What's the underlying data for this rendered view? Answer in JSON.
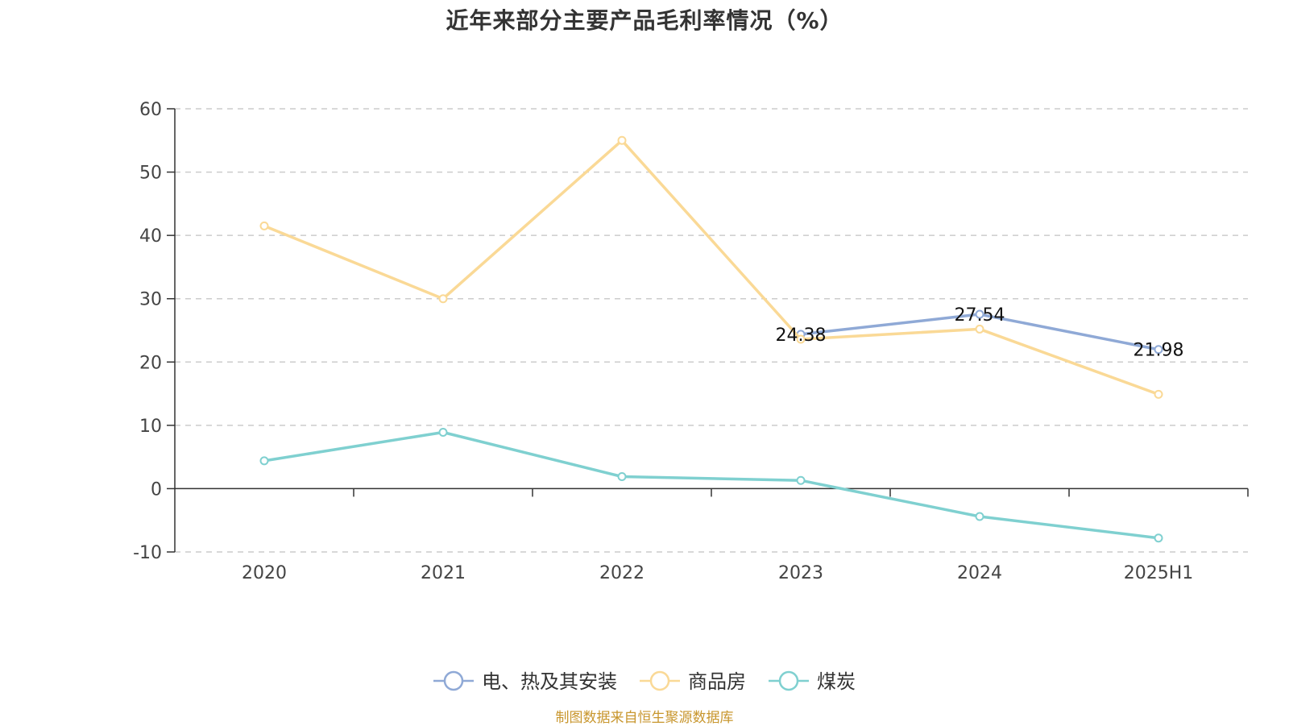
{
  "chart_data": {
    "type": "line",
    "title": "近年来部分主要产品毛利率情况（%）",
    "categories": [
      "2020",
      "2021",
      "2022",
      "2023",
      "2024",
      "2025H1"
    ],
    "ylim": [
      -10,
      60
    ],
    "yticks": [
      -10,
      0,
      10,
      20,
      30,
      40,
      50,
      60
    ],
    "grid": true,
    "legend_position": "bottom",
    "series": [
      {
        "name": "电、热及其安装",
        "color": "#8fa9d6",
        "values": [
          null,
          null,
          null,
          24.38,
          27.54,
          21.98
        ],
        "labels": [
          null,
          null,
          null,
          "24.38",
          "27.54",
          "21.98"
        ]
      },
      {
        "name": "商品房",
        "color": "#fad996",
        "values": [
          41.5,
          30.0,
          55.0,
          23.6,
          25.2,
          14.9
        ],
        "labels": [
          null,
          null,
          null,
          null,
          null,
          null
        ]
      },
      {
        "name": "煤炭",
        "color": "#7fd0d0",
        "values": [
          4.4,
          8.9,
          1.9,
          1.3,
          -4.4,
          -7.8
        ],
        "labels": [
          null,
          null,
          null,
          null,
          null,
          null
        ]
      }
    ]
  },
  "source_note": "制图数据来自恒生聚源数据库"
}
